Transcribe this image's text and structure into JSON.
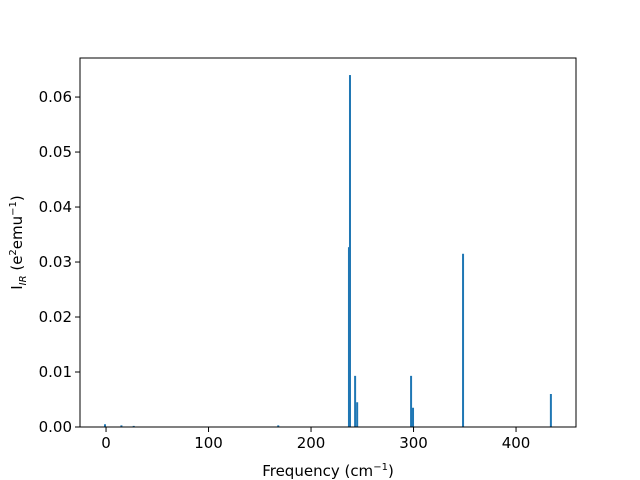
{
  "chart_data": {
    "type": "bar",
    "xlabel": [
      "Frequency (cm",
      {
        "sup": "−1"
      },
      ")"
    ],
    "ylabel": [
      "I",
      {
        "sub": "IR"
      },
      " (e",
      {
        "sup": "2"
      },
      "emu",
      {
        "sup": "−1"
      },
      ")"
    ],
    "x": [
      -1,
      15,
      27,
      168,
      237,
      238,
      243,
      245,
      297.6,
      299.5,
      348.3,
      434
    ],
    "values": [
      0.0005,
      0.0003,
      0.0002,
      0.0003,
      0.0327,
      0.064,
      0.0093,
      0.0045,
      0.0093,
      0.0035,
      0.0315,
      0.006
    ],
    "color": "#1f77b4",
    "xlim": [
      -25.4,
      458.5
    ],
    "xticks": [
      0,
      100,
      200,
      300,
      400
    ],
    "ylim": [
      0,
      0.0671
    ],
    "yticks": [
      {
        "value": 0,
        "label": "0.00"
      },
      0.01,
      0.02,
      0.03,
      0.04,
      0.05,
      0.06
    ]
  }
}
